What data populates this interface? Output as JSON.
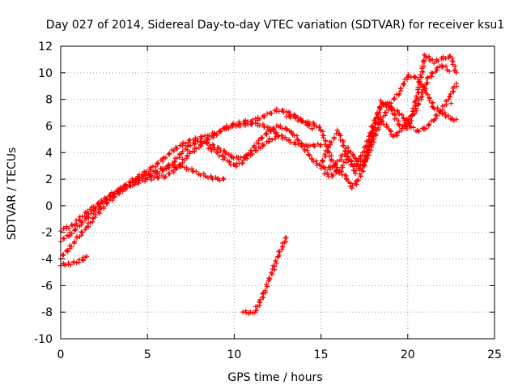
{
  "chart_data": {
    "type": "scatter",
    "title": "Day 027 of 2014, Sidereal Day-to-day VTEC variation (SDTVAR) for receiver ksu1",
    "xlabel": "GPS time / hours",
    "ylabel": "SDTVAR / TECUs",
    "xlim": [
      0,
      25
    ],
    "ylim": [
      -10,
      12
    ],
    "x_ticks": [
      0,
      5,
      10,
      15,
      20,
      25
    ],
    "y_ticks": [
      -10,
      -8,
      -6,
      -4,
      -2,
      0,
      2,
      4,
      6,
      8,
      10,
      12
    ],
    "grid": true,
    "marker": "+",
    "series_color": "#ff0000",
    "series": [
      {
        "name": "track-1",
        "x": [
          0.0,
          0.3,
          0.7,
          1.0,
          1.5,
          2.0,
          2.5,
          3.0,
          3.5,
          4.0,
          4.5,
          5.0,
          5.5,
          6.0,
          6.5,
          7.0,
          7.5,
          8.0,
          8.5,
          9.0,
          9.4
        ],
        "y": [
          -1.8,
          -1.7,
          -1.5,
          -1.1,
          -0.5,
          0.0,
          0.5,
          0.9,
          1.3,
          1.6,
          2.0,
          2.3,
          2.6,
          2.9,
          3.0,
          2.9,
          2.7,
          2.4,
          2.2,
          2.0,
          2.0
        ]
      },
      {
        "name": "track-2",
        "x": [
          0.0,
          0.5,
          1.0,
          1.5,
          2.0,
          2.5,
          3.0,
          3.5,
          4.0,
          4.5,
          5.0,
          5.5,
          6.0,
          6.5,
          7.0,
          7.5,
          8.0,
          8.5,
          9.0,
          9.5,
          10.0,
          10.5,
          11.0,
          11.5,
          12.0,
          12.5,
          13.0,
          13.5,
          14.0,
          14.5,
          15.0
        ],
        "y": [
          -2.6,
          -2.2,
          -1.6,
          -0.9,
          -0.3,
          0.3,
          0.8,
          1.3,
          1.8,
          2.2,
          2.6,
          3.1,
          3.6,
          4.2,
          4.6,
          4.9,
          5.1,
          5.3,
          5.5,
          5.8,
          6.0,
          6.1,
          6.2,
          6.1,
          5.8,
          5.4,
          5.0,
          4.7,
          4.5,
          4.5,
          4.6
        ]
      },
      {
        "name": "track-3",
        "x": [
          0.0,
          0.5,
          1.0,
          1.5,
          2.0,
          2.5,
          3.0,
          3.5,
          4.0,
          4.5,
          5.0,
          5.5,
          6.0,
          6.5,
          7.0,
          7.5,
          8.0,
          8.5,
          9.0,
          9.5,
          10.0,
          10.5,
          11.0,
          11.5,
          12.0,
          12.5,
          13.0,
          13.5,
          14.0,
          14.5
        ],
        "y": [
          -3.9,
          -3.2,
          -2.4,
          -1.6,
          -0.8,
          0.0,
          0.6,
          1.1,
          1.5,
          1.8,
          2.0,
          2.1,
          2.2,
          2.6,
          3.3,
          4.0,
          4.5,
          5.0,
          5.4,
          5.9,
          6.1,
          6.3,
          6.4,
          6.6,
          6.9,
          7.2,
          7.1,
          6.8,
          6.3,
          5.8
        ]
      },
      {
        "name": "track-4",
        "x": [
          0.0,
          0.4,
          0.8,
          1.2,
          1.5
        ],
        "y": [
          -4.4,
          -4.4,
          -4.3,
          -4.1,
          -3.8
        ]
      },
      {
        "name": "track-5",
        "x": [
          5.0,
          5.5,
          6.0,
          6.5,
          7.0,
          7.5,
          8.0,
          8.5,
          9.0,
          9.5,
          10.0,
          10.5,
          11.0,
          11.5,
          12.0,
          12.5
        ],
        "y": [
          2.2,
          2.4,
          2.7,
          3.3,
          4.0,
          4.6,
          4.8,
          4.7,
          4.4,
          4.0,
          3.6,
          3.6,
          3.9,
          4.4,
          4.9,
          5.2
        ]
      },
      {
        "name": "track-6",
        "x": [
          8.5,
          9.0,
          9.5,
          10.0,
          10.5,
          11.0,
          11.5,
          12.0,
          12.5,
          13.0,
          13.5,
          14.0,
          14.5,
          15.0,
          15.5,
          16.0,
          16.5,
          17.0,
          17.5,
          18.0,
          18.5,
          19.0,
          19.5,
          20.0,
          20.5,
          21.0,
          21.5,
          22.0,
          22.5,
          22.8
        ],
        "y": [
          4.4,
          4.0,
          3.5,
          3.0,
          3.3,
          4.2,
          5.0,
          5.6,
          6.0,
          5.8,
          5.3,
          4.4,
          3.5,
          2.9,
          2.8,
          3.3,
          4.3,
          3.6,
          3.2,
          4.8,
          6.6,
          7.4,
          7.0,
          6.2,
          5.6,
          5.8,
          6.5,
          7.3,
          8.4,
          9.2
        ]
      },
      {
        "name": "track-7",
        "x": [
          13.0,
          13.5,
          14.0,
          14.5,
          15.0,
          15.5,
          16.0,
          16.5,
          17.0,
          17.5,
          18.0,
          18.5,
          19.0,
          19.5,
          20.0,
          20.5,
          21.0,
          21.5,
          22.0,
          22.5,
          22.8
        ],
        "y": [
          6.8,
          6.6,
          6.3,
          6.2,
          5.8,
          3.8,
          2.4,
          3.6,
          3.0,
          4.2,
          6.0,
          7.6,
          7.7,
          8.5,
          9.8,
          9.6,
          8.7,
          7.4,
          7.0,
          6.5,
          6.5
        ]
      },
      {
        "name": "track-8",
        "x": [
          15.0,
          15.5,
          16.0,
          16.5,
          17.0,
          17.5,
          18.0,
          18.5,
          19.0,
          19.5,
          20.0,
          20.5,
          21.0,
          21.5,
          22.0,
          22.5,
          22.8
        ],
        "y": [
          3.1,
          4.6,
          5.6,
          3.9,
          2.5,
          3.4,
          5.7,
          7.8,
          7.4,
          6.1,
          5.8,
          8.0,
          11.3,
          10.8,
          11.1,
          11.2,
          10.0
        ]
      },
      {
        "name": "track-9",
        "x": [
          15.2,
          15.6,
          16.0,
          16.4,
          16.8,
          17.2,
          17.6,
          18.0,
          18.4,
          18.8,
          19.2,
          19.6,
          20.0,
          20.4,
          20.8,
          21.2,
          21.6,
          22.0,
          22.4
        ],
        "y": [
          2.5,
          2.2,
          2.8,
          2.2,
          1.4,
          2.0,
          3.5,
          5.4,
          6.5,
          6.0,
          5.2,
          5.6,
          6.5,
          7.0,
          8.3,
          9.6,
          10.2,
          10.6,
          10.1
        ]
      },
      {
        "name": "track-10",
        "x": [
          10.5,
          10.8,
          11.0,
          11.2,
          11.5,
          11.8,
          12.0,
          12.3,
          12.5,
          12.8,
          13.0
        ],
        "y": [
          -7.9,
          -8.1,
          -8.1,
          -7.9,
          -7.2,
          -6.3,
          -5.6,
          -4.6,
          -3.8,
          -3.0,
          -2.4
        ]
      }
    ],
    "outliers": [
      {
        "x": 22.5,
        "y": 7.7
      }
    ]
  }
}
